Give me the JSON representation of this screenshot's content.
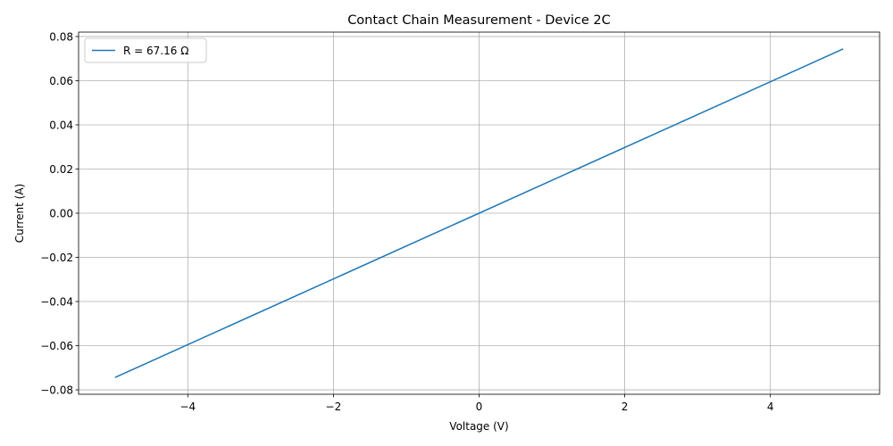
{
  "chart_data": {
    "type": "line",
    "title": "Contact Chain Measurement - Device 2C",
    "xlabel": "Voltage (V)",
    "ylabel": "Current (A)",
    "xlim": [
      -5.5,
      5.5
    ],
    "ylim": [
      -0.082,
      0.082
    ],
    "grid": true,
    "legend_position": "upper-left",
    "x_ticks": [
      -4,
      -2,
      0,
      2,
      4
    ],
    "x_tick_labels": [
      "−4",
      "−2",
      "0",
      "2",
      "4"
    ],
    "y_ticks": [
      -0.08,
      -0.06,
      -0.04,
      -0.02,
      0.0,
      0.02,
      0.04,
      0.06,
      0.08
    ],
    "y_tick_labels": [
      "−0.08",
      "−0.06",
      "−0.04",
      "−0.02",
      "0.00",
      "0.02",
      "0.04",
      "0.06",
      "0.08"
    ],
    "series": [
      {
        "name": "R = 67.16 Ω",
        "color": "#1f77b4",
        "x": [
          -5,
          5
        ],
        "y": [
          -0.0744,
          0.0744
        ]
      }
    ]
  }
}
